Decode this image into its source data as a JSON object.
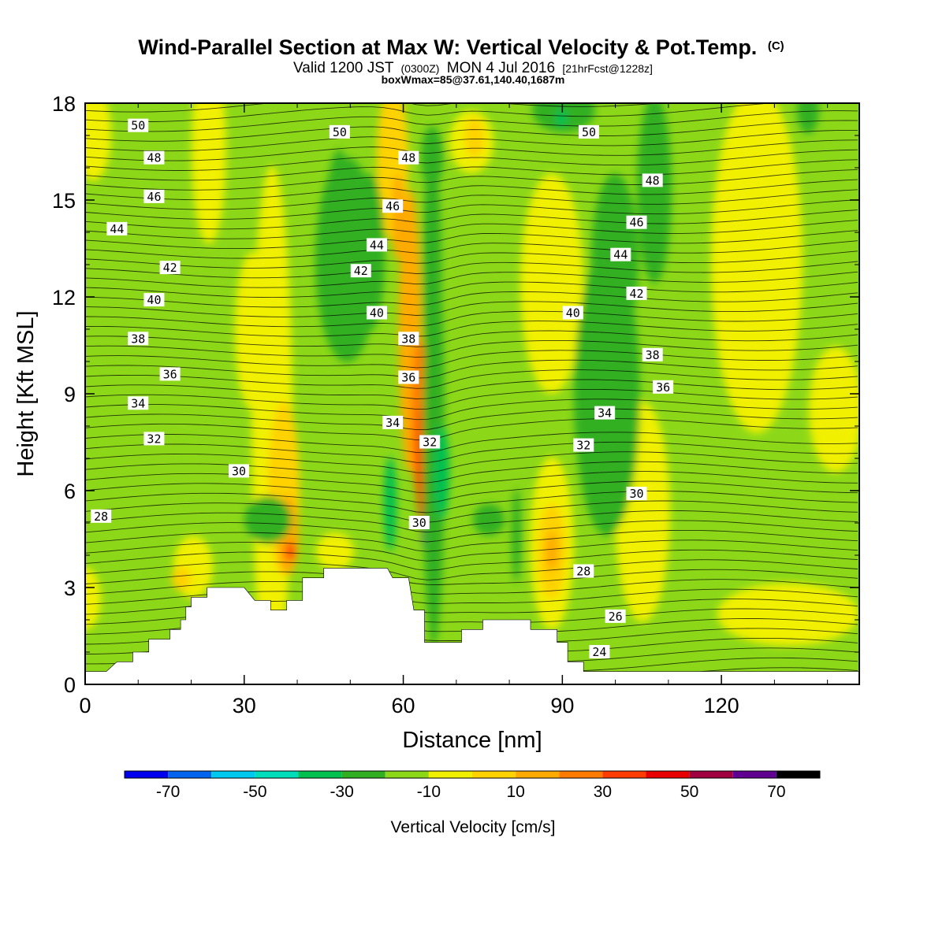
{
  "header": {
    "title": "Wind-Parallel Section at Max W: Vertical Velocity & Pot.Temp.",
    "title_mark": "(C)",
    "valid_prefix": "Valid 1200 JST",
    "valid_utc": "(0300Z)",
    "valid_date": "MON 4 Jul 2016",
    "forecast": "[21hrFcst@1228z]",
    "box_info": "boxWmax=85@37.61,140.40,1687m"
  },
  "chart_data": {
    "type": "heatmap",
    "xlabel": "Distance [nm]",
    "ylabel": "Height [Kft MSL]",
    "xlim": [
      0,
      146
    ],
    "ylim": [
      0,
      18
    ],
    "x_ticks": [
      0,
      30,
      60,
      90,
      120
    ],
    "y_ticks": [
      0,
      3,
      6,
      9,
      12,
      15,
      18
    ],
    "field": "Vertical Velocity",
    "contour_field": "Pot.Temp.",
    "colorbar": {
      "title": "Vertical Velocity [cm/s]",
      "bounds": [
        -80,
        -70,
        -60,
        -50,
        -40,
        -30,
        -20,
        -10,
        0,
        10,
        20,
        30,
        40,
        50,
        60,
        70,
        80
      ],
      "colors": [
        "#0000ee",
        "#0064ee",
        "#00c8ee",
        "#00ddbb",
        "#00c050",
        "#30b020",
        "#8cd818",
        "#f0f000",
        "#ffd200",
        "#ffaa00",
        "#ff7a00",
        "#ff3c00",
        "#e80000",
        "#a00040",
        "#600090"
      ],
      "tick_labels": [
        "-70",
        "-50",
        "-30",
        "-10",
        "10",
        "30",
        "50",
        "70"
      ]
    },
    "terrain_kft": [
      [
        0,
        0.4
      ],
      [
        4,
        0.4
      ],
      [
        6,
        0.7
      ],
      [
        9,
        0.7
      ],
      [
        9,
        1.0
      ],
      [
        12,
        1.0
      ],
      [
        12,
        1.4
      ],
      [
        16,
        1.4
      ],
      [
        16,
        1.7
      ],
      [
        18,
        1.7
      ],
      [
        18,
        2.0
      ],
      [
        19,
        2.0
      ],
      [
        19,
        2.4
      ],
      [
        20,
        2.4
      ],
      [
        20,
        2.7
      ],
      [
        23,
        2.7
      ],
      [
        23,
        3.0
      ],
      [
        30,
        3.0
      ],
      [
        32,
        2.6
      ],
      [
        35,
        2.6
      ],
      [
        35,
        2.3
      ],
      [
        38,
        2.3
      ],
      [
        38,
        2.6
      ],
      [
        41,
        2.6
      ],
      [
        41,
        3.3
      ],
      [
        45,
        3.3
      ],
      [
        45,
        3.6
      ],
      [
        57,
        3.6
      ],
      [
        58,
        3.3
      ],
      [
        61,
        3.3
      ],
      [
        62,
        2.3
      ],
      [
        64,
        2.3
      ],
      [
        64,
        1.3
      ],
      [
        71,
        1.3
      ],
      [
        71,
        1.7
      ],
      [
        75,
        1.7
      ],
      [
        75,
        2.0
      ],
      [
        84,
        2.0
      ],
      [
        84,
        1.7
      ],
      [
        89,
        1.7
      ],
      [
        89,
        1.3
      ],
      [
        91,
        1.3
      ],
      [
        91,
        0.7
      ],
      [
        94,
        0.7
      ],
      [
        94,
        0.4
      ],
      [
        146,
        0.4
      ]
    ],
    "theta_labels": [
      {
        "v": "50",
        "x": 10,
        "y": 17.3
      },
      {
        "v": "48",
        "x": 13,
        "y": 16.3
      },
      {
        "v": "46",
        "x": 13,
        "y": 15.1
      },
      {
        "v": "44",
        "x": 6,
        "y": 14.1
      },
      {
        "v": "42",
        "x": 16,
        "y": 12.9
      },
      {
        "v": "40",
        "x": 13,
        "y": 11.9
      },
      {
        "v": "38",
        "x": 10,
        "y": 10.7
      },
      {
        "v": "36",
        "x": 16,
        "y": 9.6
      },
      {
        "v": "34",
        "x": 10,
        "y": 8.7
      },
      {
        "v": "32",
        "x": 13,
        "y": 7.6
      },
      {
        "v": "30",
        "x": 29,
        "y": 6.6
      },
      {
        "v": "28",
        "x": 3,
        "y": 5.2
      },
      {
        "v": "50",
        "x": 48,
        "y": 17.1
      },
      {
        "v": "48",
        "x": 61,
        "y": 16.3
      },
      {
        "v": "46",
        "x": 58,
        "y": 14.8
      },
      {
        "v": "44",
        "x": 55,
        "y": 13.6
      },
      {
        "v": "42",
        "x": 52,
        "y": 12.8
      },
      {
        "v": "40",
        "x": 55,
        "y": 11.5
      },
      {
        "v": "38",
        "x": 61,
        "y": 10.7
      },
      {
        "v": "36",
        "x": 61,
        "y": 9.5
      },
      {
        "v": "34",
        "x": 58,
        "y": 8.1
      },
      {
        "v": "32",
        "x": 65,
        "y": 7.5
      },
      {
        "v": "30",
        "x": 63,
        "y": 5.0
      },
      {
        "v": "50",
        "x": 95,
        "y": 17.1
      },
      {
        "v": "48",
        "x": 107,
        "y": 15.6
      },
      {
        "v": "46",
        "x": 104,
        "y": 14.3
      },
      {
        "v": "44",
        "x": 101,
        "y": 13.3
      },
      {
        "v": "42",
        "x": 104,
        "y": 12.1
      },
      {
        "v": "40",
        "x": 92,
        "y": 11.5
      },
      {
        "v": "38",
        "x": 107,
        "y": 10.2
      },
      {
        "v": "36",
        "x": 109,
        "y": 9.2
      },
      {
        "v": "34",
        "x": 98,
        "y": 8.4
      },
      {
        "v": "32",
        "x": 94,
        "y": 7.4
      },
      {
        "v": "30",
        "x": 104,
        "y": 5.9
      },
      {
        "v": "28",
        "x": 94,
        "y": 3.5
      },
      {
        "v": "26",
        "x": 100,
        "y": 2.1
      },
      {
        "v": "24",
        "x": 97,
        "y": 1.0
      }
    ]
  }
}
